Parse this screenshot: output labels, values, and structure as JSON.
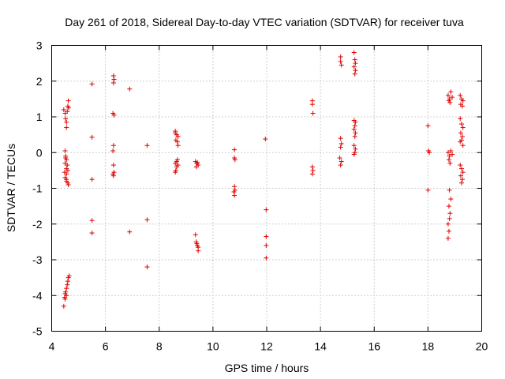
{
  "chart_data": {
    "type": "scatter",
    "title": "Day 261 of 2018, Sidereal Day-to-day VTEC variation (SDTVAR) for receiver tuva",
    "xlabel": "GPS time / hours",
    "ylabel": "SDTVAR / TECUs",
    "xlim": [
      4,
      20
    ],
    "ylim": [
      -5,
      3
    ],
    "xticks": [
      4,
      6,
      8,
      10,
      12,
      14,
      16,
      18,
      20
    ],
    "yticks": [
      -5,
      -4,
      -3,
      -2,
      -1,
      0,
      1,
      2,
      3
    ],
    "grid": true,
    "marker": "+",
    "color": "#e00000",
    "series": [
      {
        "name": "SDTVAR",
        "points": [
          [
            4.45,
            1.2
          ],
          [
            4.5,
            1.1
          ],
          [
            4.52,
            0.95
          ],
          [
            4.55,
            0.85
          ],
          [
            4.55,
            0.7
          ],
          [
            4.6,
            1.3
          ],
          [
            4.62,
            1.45
          ],
          [
            4.58,
            1.15
          ],
          [
            4.63,
            1.25
          ],
          [
            4.5,
            0.05
          ],
          [
            4.52,
            -0.1
          ],
          [
            4.55,
            -0.2
          ],
          [
            4.5,
            -0.3
          ],
          [
            4.55,
            -0.45
          ],
          [
            4.48,
            -0.55
          ],
          [
            4.55,
            -0.6
          ],
          [
            4.6,
            -0.5
          ],
          [
            4.58,
            -0.35
          ],
          [
            4.52,
            -0.15
          ],
          [
            4.5,
            -0.7
          ],
          [
            4.55,
            -0.8
          ],
          [
            4.6,
            -0.85
          ],
          [
            4.62,
            -0.9
          ],
          [
            4.55,
            -0.75
          ],
          [
            4.45,
            -4.3
          ],
          [
            4.48,
            -4.05
          ],
          [
            4.5,
            -3.95
          ],
          [
            4.52,
            -3.9
          ],
          [
            4.55,
            -3.8
          ],
          [
            4.58,
            -3.7
          ],
          [
            4.6,
            -3.6
          ],
          [
            4.62,
            -3.5
          ],
          [
            4.65,
            -3.45
          ],
          [
            4.55,
            -4.0
          ],
          [
            4.5,
            -4.1
          ],
          [
            5.5,
            1.92
          ],
          [
            5.5,
            0.43
          ],
          [
            5.5,
            -0.75
          ],
          [
            5.5,
            -1.9
          ],
          [
            5.5,
            -2.25
          ],
          [
            6.3,
            2.15
          ],
          [
            6.32,
            2.05
          ],
          [
            6.3,
            1.95
          ],
          [
            6.28,
            1.1
          ],
          [
            6.32,
            1.05
          ],
          [
            6.3,
            0.2
          ],
          [
            6.28,
            0.05
          ],
          [
            6.3,
            -0.35
          ],
          [
            6.32,
            -0.55
          ],
          [
            6.28,
            -0.6
          ],
          [
            6.3,
            -0.65
          ],
          [
            6.9,
            1.78
          ],
          [
            6.9,
            -2.22
          ],
          [
            7.55,
            0.2
          ],
          [
            7.55,
            -1.88
          ],
          [
            7.55,
            -3.2
          ],
          [
            8.6,
            0.6
          ],
          [
            8.65,
            0.5
          ],
          [
            8.7,
            0.45
          ],
          [
            8.62,
            0.35
          ],
          [
            8.68,
            0.3
          ],
          [
            8.6,
            0.55
          ],
          [
            8.7,
            0.2
          ],
          [
            8.6,
            -0.3
          ],
          [
            8.65,
            -0.4
          ],
          [
            8.62,
            -0.5
          ],
          [
            8.68,
            -0.2
          ],
          [
            8.7,
            -0.35
          ],
          [
            8.6,
            -0.55
          ],
          [
            8.65,
            -0.25
          ],
          [
            9.35,
            -0.25
          ],
          [
            9.4,
            -0.3
          ],
          [
            9.45,
            -0.35
          ],
          [
            9.38,
            -0.4
          ],
          [
            9.42,
            -0.28
          ],
          [
            9.35,
            -2.3
          ],
          [
            9.38,
            -2.5
          ],
          [
            9.42,
            -2.6
          ],
          [
            9.45,
            -2.65
          ],
          [
            9.4,
            -2.55
          ],
          [
            9.45,
            -2.75
          ],
          [
            10.8,
            0.08
          ],
          [
            10.8,
            -0.15
          ],
          [
            10.82,
            -0.2
          ],
          [
            10.8,
            -0.95
          ],
          [
            10.82,
            -1.05
          ],
          [
            10.78,
            -1.1
          ],
          [
            10.8,
            -1.2
          ],
          [
            11.95,
            0.38
          ],
          [
            11.98,
            -1.6
          ],
          [
            11.98,
            -2.35
          ],
          [
            11.98,
            -2.6
          ],
          [
            11.98,
            -2.95
          ],
          [
            13.7,
            1.45
          ],
          [
            13.7,
            1.35
          ],
          [
            13.72,
            1.1
          ],
          [
            13.7,
            -0.4
          ],
          [
            13.72,
            -0.5
          ],
          [
            13.7,
            -0.6
          ],
          [
            14.75,
            2.68
          ],
          [
            14.75,
            2.55
          ],
          [
            14.78,
            2.45
          ],
          [
            14.75,
            0.4
          ],
          [
            14.78,
            0.25
          ],
          [
            14.75,
            0.15
          ],
          [
            14.72,
            -0.15
          ],
          [
            14.78,
            -0.25
          ],
          [
            14.75,
            -0.35
          ],
          [
            15.25,
            2.8
          ],
          [
            15.28,
            2.6
          ],
          [
            15.3,
            2.5
          ],
          [
            15.25,
            2.4
          ],
          [
            15.3,
            2.3
          ],
          [
            15.28,
            2.2
          ],
          [
            15.25,
            0.9
          ],
          [
            15.3,
            0.85
          ],
          [
            15.28,
            0.75
          ],
          [
            15.25,
            0.65
          ],
          [
            15.3,
            0.55
          ],
          [
            15.28,
            0.45
          ],
          [
            15.25,
            0.2
          ],
          [
            15.3,
            0.1
          ],
          [
            15.28,
            0.0
          ],
          [
            15.25,
            -0.05
          ],
          [
            18.0,
            0.75
          ],
          [
            18.02,
            0.05
          ],
          [
            18.05,
            0.0
          ],
          [
            18.0,
            -1.05
          ],
          [
            18.75,
            1.6
          ],
          [
            18.8,
            1.5
          ],
          [
            18.85,
            1.7
          ],
          [
            18.78,
            1.45
          ],
          [
            18.9,
            1.55
          ],
          [
            18.82,
            1.4
          ],
          [
            18.75,
            0.0
          ],
          [
            18.8,
            -0.1
          ],
          [
            18.85,
            0.05
          ],
          [
            18.78,
            -0.2
          ],
          [
            18.9,
            -0.05
          ],
          [
            18.82,
            -0.3
          ],
          [
            18.8,
            -1.05
          ],
          [
            18.85,
            -1.3
          ],
          [
            18.78,
            -1.5
          ],
          [
            18.82,
            -1.7
          ],
          [
            18.8,
            -1.85
          ],
          [
            18.75,
            -2.0
          ],
          [
            18.78,
            -2.2
          ],
          [
            18.75,
            -2.4
          ],
          [
            19.2,
            1.6
          ],
          [
            19.25,
            1.5
          ],
          [
            19.3,
            1.45
          ],
          [
            19.22,
            1.35
          ],
          [
            19.28,
            1.3
          ],
          [
            19.2,
            0.95
          ],
          [
            19.25,
            0.8
          ],
          [
            19.3,
            0.7
          ],
          [
            19.22,
            0.55
          ],
          [
            19.28,
            0.45
          ],
          [
            19.25,
            0.35
          ],
          [
            19.2,
            0.3
          ],
          [
            19.3,
            0.2
          ],
          [
            19.2,
            -0.35
          ],
          [
            19.25,
            -0.45
          ],
          [
            19.3,
            -0.55
          ],
          [
            19.22,
            -0.65
          ],
          [
            19.28,
            -0.75
          ],
          [
            19.25,
            -0.85
          ]
        ]
      }
    ]
  }
}
